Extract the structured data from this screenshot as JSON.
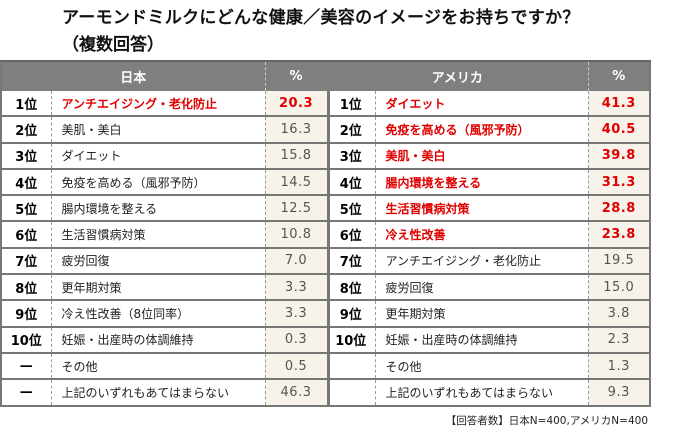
{
  "title": "アーモンドミルクにどんな健康／美容のイメージをお持ちですか？",
  "subtitle": "（複数回答）",
  "japan": {
    "header": "日本",
    "pct_header": "%",
    "rows": [
      {
        "rank": "1位",
        "item": "アンチエイジング・老化防止",
        "pct": "20.3",
        "hl": true
      },
      {
        "rank": "2位",
        "item": "美肌・美白",
        "pct": "16.3"
      },
      {
        "rank": "3位",
        "item": "ダイエット",
        "pct": "15.8"
      },
      {
        "rank": "4位",
        "item": "免疫を高める（風邪予防）",
        "pct": "14.5"
      },
      {
        "rank": "5位",
        "item": "腸内環境を整える",
        "pct": "12.5"
      },
      {
        "rank": "6位",
        "item": "生活習慣病対策",
        "pct": "10.8"
      },
      {
        "rank": "7位",
        "item": "疲労回復",
        "pct": "7.0"
      },
      {
        "rank": "8位",
        "item": "更年期対策",
        "pct": "3.3"
      },
      {
        "rank": "9位",
        "item": "冷え性改善（8位同率）",
        "pct": "3.3"
      },
      {
        "rank": "10位",
        "item": "妊娠・出産時の体調維持",
        "pct": "0.3"
      },
      {
        "rank": "—",
        "item": "その他",
        "pct": "0.5"
      },
      {
        "rank": "—",
        "item": "上記のいずれもあてはまらない",
        "pct": "46.3"
      }
    ]
  },
  "america": {
    "header": "アメリカ",
    "pct_header": "%",
    "rows": [
      {
        "rank": "1位",
        "item": "ダイエット",
        "pct": "41.3",
        "hl": true
      },
      {
        "rank": "2位",
        "item": "免疫を高める（風邪予防）",
        "pct": "40.5",
        "hl": true
      },
      {
        "rank": "3位",
        "item": "美肌・美白",
        "pct": "39.8",
        "hl": true
      },
      {
        "rank": "4位",
        "item": "腸内環境を整える",
        "pct": "31.3",
        "hl": true
      },
      {
        "rank": "5位",
        "item": "生活習慣病対策",
        "pct": "28.8",
        "hl": true
      },
      {
        "rank": "6位",
        "item": "冷え性改善",
        "pct": "23.8",
        "hl": true
      },
      {
        "rank": "7位",
        "item": "アンチエイジング・老化防止",
        "pct": "19.5"
      },
      {
        "rank": "8位",
        "item": "疲労回復",
        "pct": "15.0"
      },
      {
        "rank": "9位",
        "item": "更年期対策",
        "pct": "3.8"
      },
      {
        "rank": "10位",
        "item": "妊娠・出産時の体調維持",
        "pct": "2.3"
      },
      {
        "rank": "",
        "item": "その他",
        "pct": "1.3"
      },
      {
        "rank": "",
        "item": "上記のいずれもあてはまらない",
        "pct": "9.3"
      }
    ]
  },
  "note": "【回答者数】日本N=400,アメリカN=400",
  "colors": {
    "highlight": "#e00000",
    "header_bg": "#7f7f7f",
    "pct_bg": "#f7f3ea"
  }
}
